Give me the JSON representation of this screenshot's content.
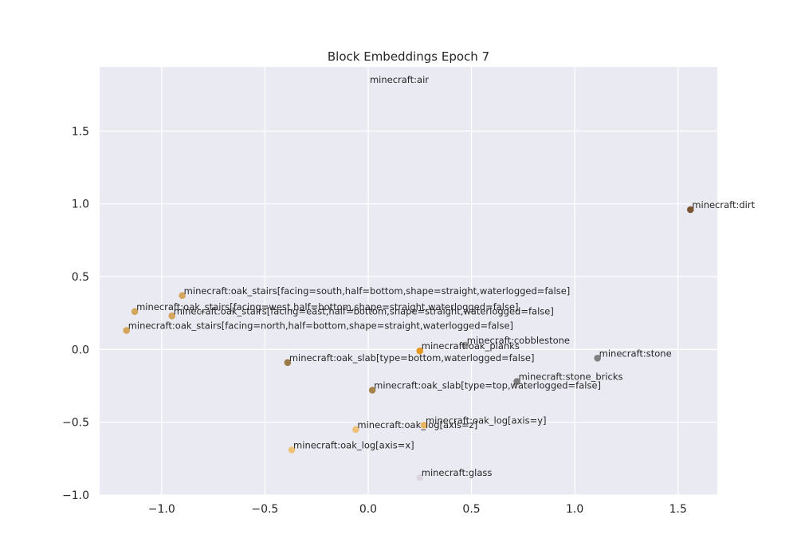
{
  "chart_data": {
    "type": "scatter",
    "title": "Block Embeddings Epoch 7",
    "xlabel": "",
    "ylabel": "",
    "xlim": [
      -1.3,
      1.69
    ],
    "ylim": [
      -1.0,
      1.94
    ],
    "x_ticks": [
      -1.0,
      -0.5,
      0.0,
      0.5,
      1.0,
      1.5
    ],
    "x_tick_labels": [
      "−1.0",
      "−0.5",
      "0.0",
      "0.5",
      "1.0",
      "1.5"
    ],
    "y_ticks": [
      -1.0,
      -0.5,
      0.0,
      0.5,
      1.0,
      1.5
    ],
    "y_tick_labels": [
      "−1.0",
      "−0.5",
      "0.0",
      "0.5",
      "1.0",
      "1.5"
    ],
    "grid": true,
    "background": "#eaeaf2",
    "points": [
      {
        "label": "minecraft:air",
        "x": 0.0,
        "y": 1.82,
        "color": null
      },
      {
        "label": "minecraft:dirt",
        "x": 1.56,
        "y": 0.96,
        "color": "#7a5230"
      },
      {
        "label": "minecraft:oak_stairs[facing=south,half=bottom,shape=straight,waterlogged=false]",
        "x": -0.9,
        "y": 0.37,
        "color": "#d4a65c"
      },
      {
        "label": "minecraft:oak_stairs[facing=west,half=bottom,shape=straight,waterlogged=false]",
        "x": -1.13,
        "y": 0.26,
        "color": "#d4a65c"
      },
      {
        "label": "minecraft:oak_stairs[facing=east,half=bottom,shape=straight,waterlogged=false]",
        "x": -0.95,
        "y": 0.23,
        "color": "#d4a65c"
      },
      {
        "label": "minecraft:oak_stairs[facing=north,half=bottom,shape=straight,waterlogged=false]",
        "x": -1.17,
        "y": 0.13,
        "color": "#d4a65c"
      },
      {
        "label": "minecraft:cobblestone",
        "x": 0.47,
        "y": 0.03,
        "color": "#9a9a9a"
      },
      {
        "label": "minecraft:oak_planks",
        "x": 0.25,
        "y": -0.01,
        "color": "#e69a20"
      },
      {
        "label": "minecraft:stone",
        "x": 1.11,
        "y": -0.06,
        "color": "#808080"
      },
      {
        "label": "minecraft:oak_slab[type=bottom,waterlogged=false]",
        "x": -0.39,
        "y": -0.09,
        "color": "#9a7a48"
      },
      {
        "label": "minecraft:stone_bricks",
        "x": 0.72,
        "y": -0.22,
        "color": "#7c7c7c"
      },
      {
        "label": "minecraft:oak_slab[type=top,waterlogged=false]",
        "x": 0.02,
        "y": -0.28,
        "color": "#a8834d"
      },
      {
        "label": "minecraft:oak_log[axis=y]",
        "x": 0.27,
        "y": -0.52,
        "color": "#e8b560"
      },
      {
        "label": "minecraft:oak_log[axis=z]",
        "x": -0.06,
        "y": -0.55,
        "color": "#efc27a"
      },
      {
        "label": "minecraft:oak_log[axis=x]",
        "x": -0.37,
        "y": -0.69,
        "color": "#efc27a"
      },
      {
        "label": "minecraft:glass",
        "x": 0.25,
        "y": -0.88,
        "color": "#dcd6dc"
      }
    ]
  }
}
